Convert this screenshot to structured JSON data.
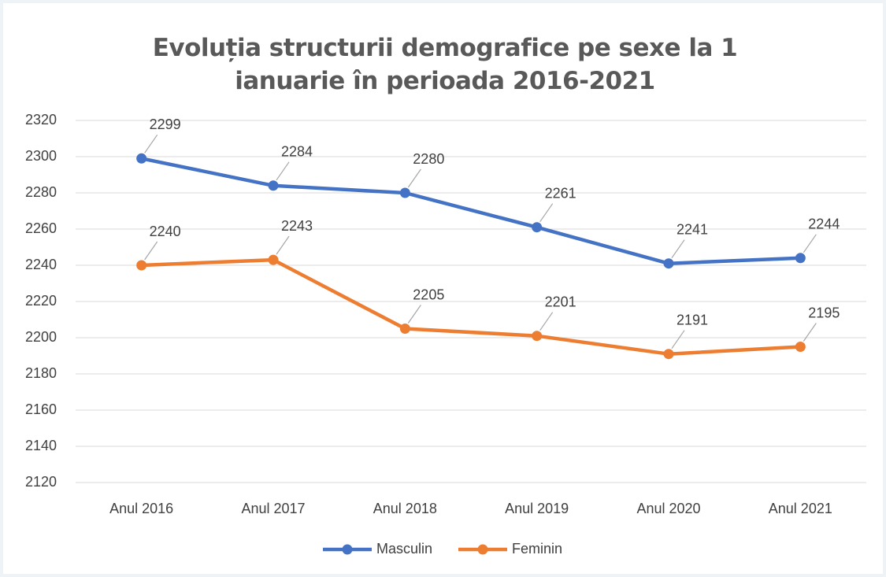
{
  "chart_data": {
    "type": "line",
    "title": "Evoluția structurii demografice pe sexe la 1 ianuarie în perioada 2016-2021",
    "categories": [
      "Anul 2016",
      "Anul 2017",
      "Anul 2018",
      "Anul 2019",
      "Anul 2020",
      "Anul 2021"
    ],
    "series": [
      {
        "name": "Masculin",
        "color": "#4472c4",
        "values": [
          2299,
          2284,
          2280,
          2261,
          2241,
          2244
        ]
      },
      {
        "name": "Feminin",
        "color": "#ed7d31",
        "values": [
          2240,
          2243,
          2205,
          2201,
          2191,
          2195
        ]
      }
    ],
    "ylim": [
      2120,
      2320
    ],
    "yticks": [
      2120,
      2140,
      2160,
      2180,
      2200,
      2220,
      2240,
      2260,
      2280,
      2300,
      2320
    ],
    "grid": true,
    "legend": "bottom"
  }
}
